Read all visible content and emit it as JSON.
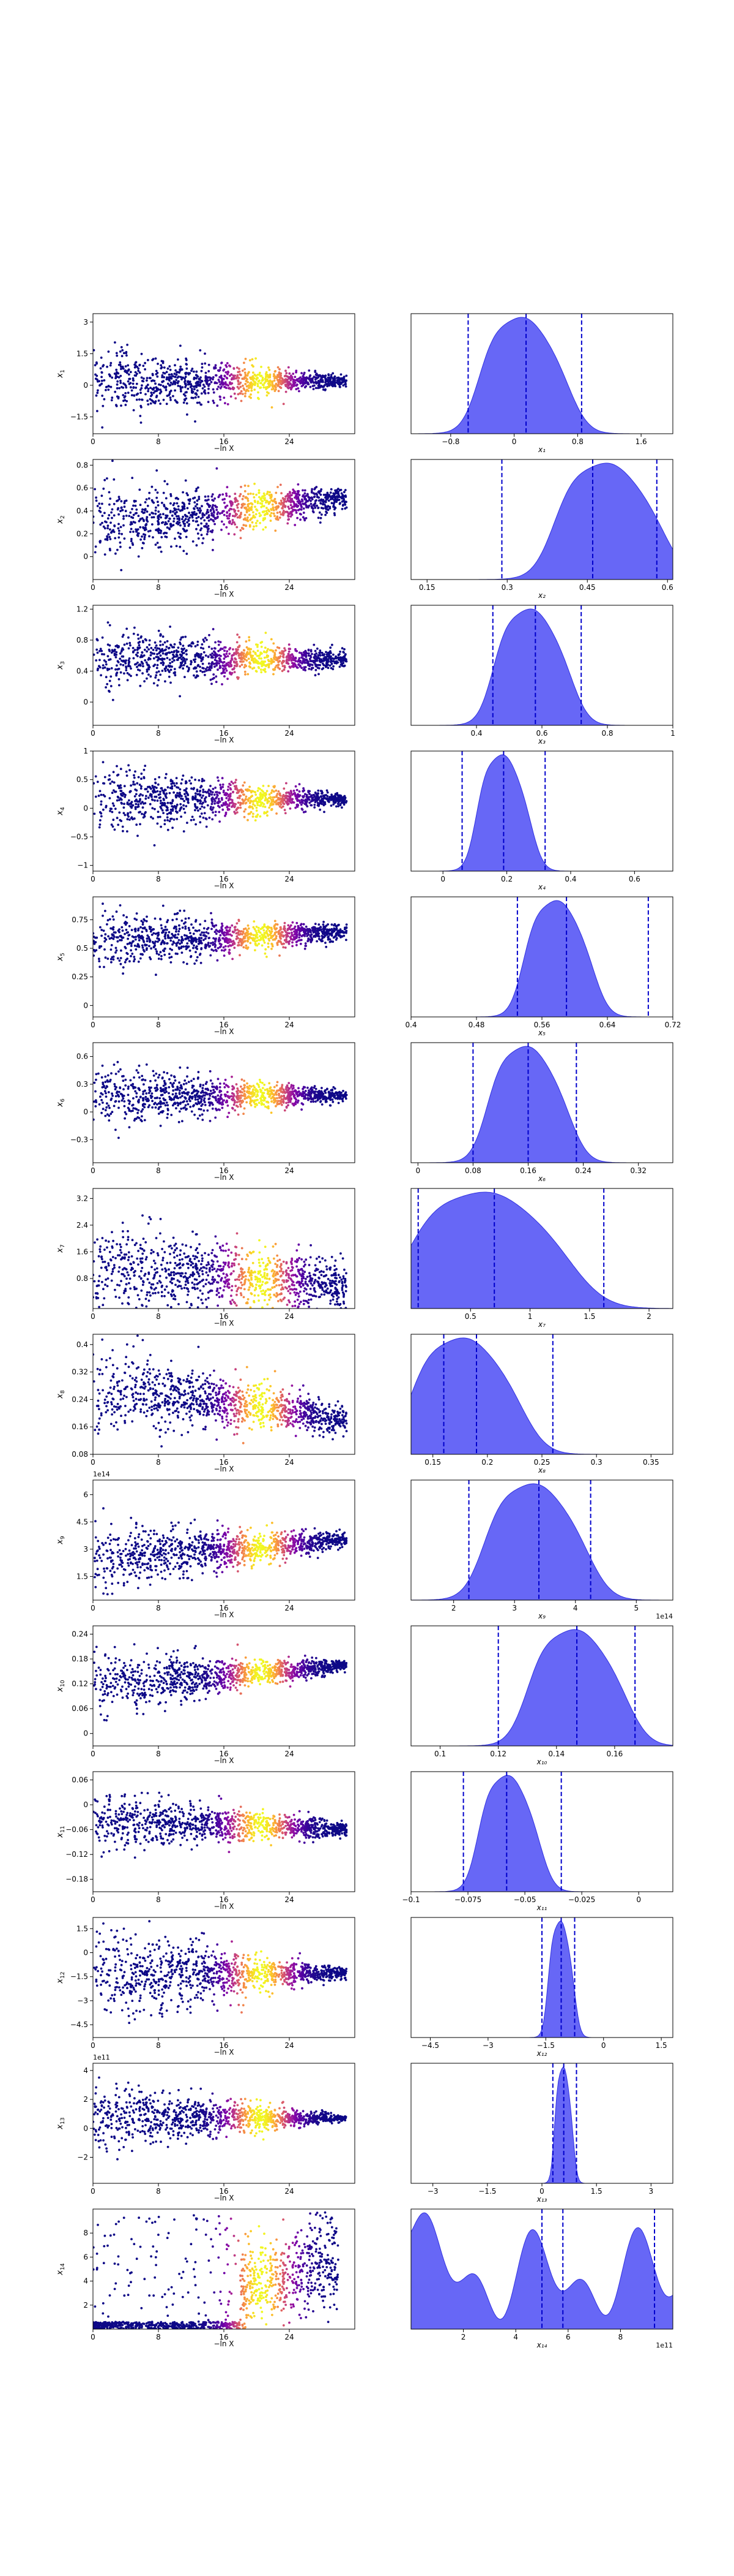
{
  "figure": {
    "scatter_xlabel": "−ln X",
    "colormap": "plasma"
  },
  "chart_data": [
    {
      "type": "scatter",
      "param": "x",
      "param_sub": "1",
      "scatter": {
        "ylim": [
          -2.3,
          3.4
        ],
        "yticks": [
          -1.5,
          0.0,
          1.5,
          3.0
        ],
        "y_mean": 0.2,
        "y_spread_start": 0.85,
        "y_spread_end": 0.12
      },
      "density": {
        "xlim": [
          -1.3,
          2.0
        ],
        "xticks": [
          -0.8,
          0.0,
          0.8,
          1.6
        ],
        "peak": 0.12,
        "sd": 0.33,
        "quantiles": [
          -0.58,
          0.15,
          0.85
        ],
        "xlabel": "x₁"
      }
    },
    {
      "type": "scatter",
      "param": "x",
      "param_sub": "2",
      "scatter": {
        "ylim": [
          -0.2,
          0.85
        ],
        "yticks": [
          0.0,
          0.2,
          0.4,
          0.6,
          0.8
        ],
        "y_mean": 0.3,
        "y_mean_end": 0.52,
        "y_spread_start": 0.17,
        "y_spread_end": 0.05
      },
      "density": {
        "xlim": [
          0.12,
          0.61
        ],
        "xticks": [
          0.15,
          0.3,
          0.45,
          0.6
        ],
        "peak": 0.49,
        "sd": 0.06,
        "quantiles": [
          0.29,
          0.46,
          0.58
        ],
        "xlabel": "x₂"
      }
    },
    {
      "type": "scatter",
      "param": "x",
      "param_sub": "3",
      "scatter": {
        "ylim": [
          -0.3,
          1.25
        ],
        "yticks": [
          0.0,
          0.4,
          0.8,
          1.2
        ],
        "y_mean": 0.55,
        "y_spread_start": 0.22,
        "y_spread_end": 0.05
      },
      "density": {
        "xlim": [
          0.2,
          1.0
        ],
        "xticks": [
          0.4,
          0.6,
          0.8,
          1.0
        ],
        "peak": 0.57,
        "sd": 0.07,
        "quantiles": [
          0.45,
          0.58,
          0.72
        ],
        "xlabel": "x₃"
      }
    },
    {
      "type": "scatter",
      "param": "x",
      "param_sub": "4",
      "scatter": {
        "ylim": [
          -1.1,
          1.0
        ],
        "yticks": [
          -1.0,
          -0.5,
          0.0,
          0.5,
          1.0
        ],
        "y_mean": 0.15,
        "y_spread_start": 0.32,
        "y_spread_end": 0.05
      },
      "density": {
        "xlim": [
          -0.1,
          0.72
        ],
        "xticks": [
          0.0,
          0.2,
          0.4,
          0.6
        ],
        "peak": 0.19,
        "sd": 0.05,
        "quantiles": [
          0.06,
          0.19,
          0.32
        ],
        "xlabel": "x₄"
      }
    },
    {
      "type": "scatter",
      "param": "x",
      "param_sub": "5",
      "scatter": {
        "ylim": [
          -0.1,
          0.95
        ],
        "yticks": [
          0.0,
          0.25,
          0.5,
          0.75
        ],
        "y_mean": 0.56,
        "y_mean_end": 0.64,
        "y_spread_start": 0.14,
        "y_spread_end": 0.03
      },
      "density": {
        "xlim": [
          0.4,
          0.72
        ],
        "xticks": [
          0.4,
          0.48,
          0.56,
          0.64,
          0.72
        ],
        "peak": 0.58,
        "sd": 0.025,
        "quantiles": [
          0.53,
          0.59,
          0.69
        ],
        "xlabel": "x₅"
      }
    },
    {
      "type": "scatter",
      "param": "x",
      "param_sub": "6",
      "scatter": {
        "ylim": [
          -0.55,
          0.75
        ],
        "yticks": [
          -0.3,
          0.0,
          0.3,
          0.6
        ],
        "y_mean": 0.18,
        "y_spread_start": 0.17,
        "y_spread_end": 0.03
      },
      "density": {
        "xlim": [
          -0.01,
          0.37
        ],
        "xticks": [
          0.0,
          0.08,
          0.16,
          0.24,
          0.32
        ],
        "peak": 0.16,
        "sd": 0.035,
        "quantiles": [
          0.08,
          0.16,
          0.23
        ],
        "xlabel": "x₆"
      }
    },
    {
      "type": "scatter",
      "param": "x",
      "param_sub": "7",
      "scatter": {
        "ylim": [
          -0.1,
          3.5
        ],
        "yticks": [
          0.8,
          1.6,
          2.4,
          3.2
        ],
        "y_mean": 1.1,
        "y_mean_end": 0.55,
        "y_spread_start": 0.7,
        "y_spread_end": 0.35
      },
      "density": {
        "xlim": [
          0.0,
          2.2
        ],
        "xticks": [
          0.5,
          1.0,
          1.5,
          2.0
        ],
        "peak": 0.65,
        "sd": 0.4,
        "quantiles": [
          0.06,
          0.7,
          1.62
        ],
        "xlabel": "x₇"
      }
    },
    {
      "type": "scatter",
      "param": "x",
      "param_sub": "8",
      "scatter": {
        "ylim": [
          0.08,
          0.43
        ],
        "yticks": [
          0.08,
          0.16,
          0.24,
          0.32,
          0.4
        ],
        "y_mean": 0.27,
        "y_mean_end": 0.18,
        "y_spread_start": 0.06,
        "y_spread_end": 0.02
      },
      "density": {
        "xlim": [
          0.13,
          0.37
        ],
        "xticks": [
          0.15,
          0.2,
          0.25,
          0.3,
          0.35
        ],
        "peak": 0.18,
        "sd": 0.03,
        "quantiles": [
          0.16,
          0.19,
          0.26
        ],
        "xlabel": "x₈"
      }
    },
    {
      "type": "scatter",
      "param": "x",
      "param_sub": "9",
      "offset_label": "1e14",
      "scatter": {
        "ylim": [
          0.2,
          6.8
        ],
        "yticks": [
          1.5,
          3.0,
          4.5,
          6.0
        ],
        "y_mean": 2.6,
        "y_mean_end": 3.5,
        "y_spread_start": 1.0,
        "y_spread_end": 0.2
      },
      "density": {
        "xlim": [
          1.3,
          5.6
        ],
        "xticks": [
          2,
          3,
          4,
          5
        ],
        "peak": 3.35,
        "sd": 0.5,
        "quantiles": [
          2.25,
          3.4,
          4.25
        ],
        "xlabel": "x₉",
        "offset_label": "1e14"
      }
    },
    {
      "type": "scatter",
      "param": "x",
      "param_sub": "10",
      "scatter": {
        "ylim": [
          -0.03,
          0.26
        ],
        "yticks": [
          0.0,
          0.06,
          0.12,
          0.18,
          0.24
        ],
        "y_mean": 0.12,
        "y_mean_end": 0.165,
        "y_spread_start": 0.04,
        "y_spread_end": 0.007
      },
      "density": {
        "xlim": [
          0.09,
          0.18
        ],
        "xticks": [
          0.1,
          0.12,
          0.14,
          0.16
        ],
        "peak": 0.147,
        "sd": 0.01,
        "quantiles": [
          0.12,
          0.147,
          0.167
        ],
        "xlabel": "x₁₀"
      }
    },
    {
      "type": "scatter",
      "param": "x",
      "param_sub": "11",
      "scatter": {
        "ylim": [
          -0.21,
          0.08
        ],
        "yticks": [
          -0.18,
          -0.12,
          -0.06,
          0.0,
          0.06
        ],
        "y_mean": -0.04,
        "y_mean_end": -0.06,
        "y_spread_start": 0.04,
        "y_spread_end": 0.008
      },
      "density": {
        "xlim": [
          -0.1,
          0.015
        ],
        "xticks": [
          -0.1,
          -0.075,
          -0.05,
          -0.025,
          0.0
        ],
        "peak": -0.057,
        "sd": 0.008,
        "quantiles": [
          -0.077,
          -0.058,
          -0.034
        ],
        "xlabel": "x₁₁"
      }
    },
    {
      "type": "scatter",
      "param": "x",
      "param_sub": "12",
      "scatter": {
        "ylim": [
          -5.3,
          2.2
        ],
        "yticks": [
          -4.5,
          -3.0,
          -1.5,
          0.0,
          1.5
        ],
        "y_mean": -1.3,
        "y_spread_start": 1.6,
        "y_spread_end": 0.15
      },
      "density": {
        "xlim": [
          -5.0,
          1.8
        ],
        "xticks": [
          -4.5,
          -3.0,
          -1.5,
          0.0,
          1.5
        ],
        "peak": -1.1,
        "sd": 0.2,
        "quantiles": [
          -1.6,
          -1.1,
          -0.75
        ],
        "xlabel": "x₁₂"
      }
    },
    {
      "type": "scatter",
      "param": "x",
      "param_sub": "13",
      "offset_label": "1e11",
      "scatter": {
        "ylim": [
          -3.8,
          4.5
        ],
        "yticks": [
          -2,
          0,
          2,
          4
        ],
        "y_mean": 0.7,
        "y_spread_start": 1.3,
        "y_spread_end": 0.1
      },
      "density": {
        "xlim": [
          -3.6,
          3.6
        ],
        "xticks": [
          -3.0,
          -1.5,
          0.0,
          1.5,
          3.0
        ],
        "peak": 0.6,
        "sd": 0.15,
        "quantiles": [
          0.3,
          0.6,
          0.95
        ],
        "xlabel": "x₁₃"
      }
    },
    {
      "type": "scatter",
      "param": "x",
      "param_sub": "14",
      "scatter": {
        "ylim": [
          0.0,
          10.0
        ],
        "yticks": [
          2,
          4,
          6,
          8
        ],
        "y_mean": 0.5,
        "y_mean_end": 6.0,
        "y_spread_start": 0.4,
        "y_spread_end": 2.3
      },
      "density": {
        "xlim": [
          0.0,
          10.0
        ],
        "xticks": [
          2,
          4,
          6,
          8
        ],
        "peak": 5.5,
        "sd": 3.0,
        "quantiles": [
          5.0,
          5.8,
          9.3
        ],
        "xlabel": "x₁₄",
        "offset_label": "1e11"
      }
    }
  ]
}
